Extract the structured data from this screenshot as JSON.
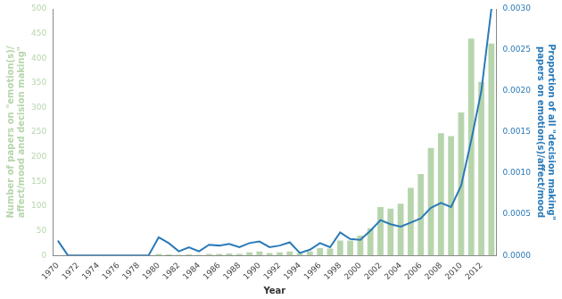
{
  "chart_data": {
    "type": "bar",
    "xlabel": "Year",
    "ylabel": [
      "Number of papers on \"emotion(s)/",
      "affect/mood and decision making\""
    ],
    "y2label": [
      "Proportion of all \"decision making\"",
      "papers on emotion(s)/affect/mood"
    ],
    "categories": [
      "1970",
      null,
      "1972",
      null,
      "1974",
      null,
      "1976",
      null,
      "1978",
      null,
      "1980",
      null,
      "1982",
      null,
      "1984",
      null,
      "1986",
      null,
      "1988",
      null,
      "1990",
      null,
      "1992",
      null,
      "1994",
      null,
      "1996",
      null,
      "1998",
      null,
      "2000",
      null,
      "2002",
      null,
      "2004",
      null,
      "2006",
      null,
      "2008",
      null,
      "2010",
      null,
      "2012",
      null
    ],
    "series": [
      {
        "type": "bar",
        "color": "#b7d5ad",
        "values": [
          0,
          0,
          0,
          0,
          0,
          0,
          0,
          0,
          0,
          0,
          3,
          2,
          1,
          2,
          1,
          3,
          3,
          4,
          3,
          6,
          8,
          5,
          6,
          8,
          5,
          8,
          15,
          14,
          30,
          30,
          40,
          55,
          98,
          95,
          105,
          137,
          165,
          218,
          248,
          242,
          290,
          440,
          352,
          430
        ]
      },
      {
        "type": "line",
        "axis": "y2",
        "color": "#2a7ab8",
        "values": [
          0.00018,
          0,
          0,
          0,
          0,
          0,
          0,
          0,
          0,
          0,
          0.00022,
          0.00015,
          5e-05,
          0.0001,
          5e-05,
          0.00013,
          0.00012,
          0.00014,
          0.0001,
          0.00015,
          0.00017,
          0.0001,
          0.00012,
          0.00016,
          3e-05,
          7e-05,
          0.00015,
          0.0001,
          0.00028,
          0.0002,
          0.00019,
          0.0003,
          0.00043,
          0.00038,
          0.00035,
          0.0004,
          0.00045,
          0.00058,
          0.00064,
          0.00059,
          0.00085,
          0.0014,
          0.002,
          0.003
        ]
      }
    ],
    "ylim": [
      0,
      500
    ],
    "yticks": [
      0,
      50,
      100,
      150,
      200,
      250,
      300,
      350,
      400,
      450,
      500
    ],
    "y2lim": [
      0,
      0.003
    ],
    "y2ticks": [
      {
        "value": 0,
        "label": "0.0000"
      },
      {
        "value": 0.0005,
        "label": "0.0005"
      },
      {
        "value": 0.001,
        "label": "0.0010"
      },
      {
        "value": 0.0015,
        "label": "0.0015"
      },
      {
        "value": 0.002,
        "label": "0.0020"
      },
      {
        "value": 0.0025,
        "label": "0.0025"
      },
      {
        "value": 0.003,
        "label": "0.0030"
      }
    ],
    "grid": false
  }
}
